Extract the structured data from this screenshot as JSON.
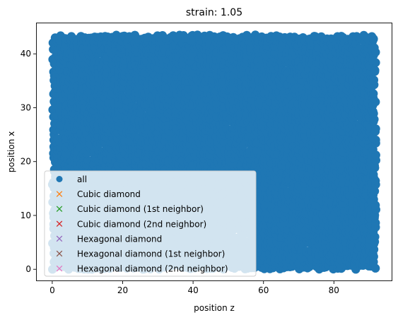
{
  "chart_data": {
    "type": "scatter",
    "title": "strain: 1.05",
    "xlabel": "position z",
    "ylabel": "position x",
    "xlim": [
      -4.6,
      96.6
    ],
    "ylim": [
      -2.2,
      45.8
    ],
    "x_ticks": [
      0,
      20,
      40,
      60,
      80
    ],
    "y_ticks": [
      0,
      10,
      20,
      30,
      40
    ],
    "grid": false,
    "legend_position": "lower left",
    "data_extent": {
      "x": [
        0,
        92
      ],
      "y": [
        0,
        43.5
      ]
    },
    "series": [
      {
        "name": "all",
        "marker": "o",
        "color": "#1f77b4",
        "description_values": "dense cloud of points covering x 0–92, y 0–43.5",
        "points_shown": "dense"
      },
      {
        "name": "Cubic diamond",
        "marker": "x",
        "color": "#ff7f0e",
        "points": []
      },
      {
        "name": "Cubic diamond (1st neighbor)",
        "marker": "x",
        "color": "#2ca02c",
        "points": []
      },
      {
        "name": "Cubic diamond (2nd neighbor)",
        "marker": "x",
        "color": "#d62728",
        "points": []
      },
      {
        "name": "Hexagonal diamond",
        "marker": "x",
        "color": "#9467bd",
        "points": []
      },
      {
        "name": "Hexagonal diamond (1st neighbor)",
        "marker": "x",
        "color": "#8c564b",
        "points": []
      },
      {
        "name": "Hexagonal diamond (2nd neighbor)",
        "marker": "x",
        "color": "#e377c2",
        "points": []
      }
    ]
  }
}
